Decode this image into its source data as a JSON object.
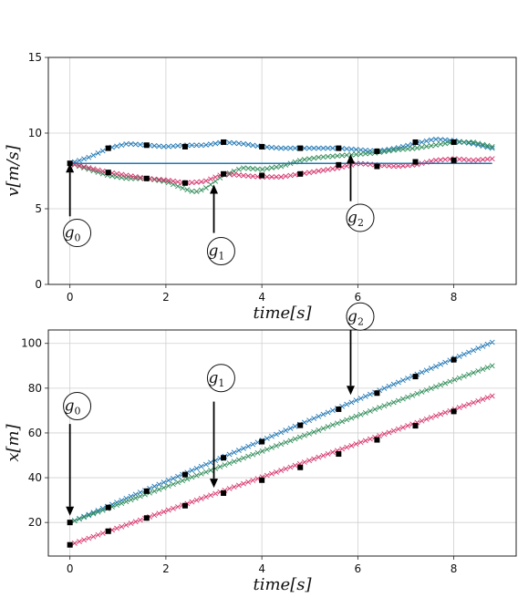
{
  "chart_data": [
    {
      "type": "line",
      "xlabel": "time[s]",
      "ylabel": "v[m/s]",
      "xlim": [
        -0.45,
        9.3
      ],
      "ylim": [
        0,
        15
      ],
      "xticks": [
        0,
        2,
        4,
        6,
        8
      ],
      "yticks": [
        0,
        5,
        10,
        15
      ],
      "grid": true,
      "series": [
        {
          "color": "#1f77b4",
          "marker": "x",
          "x": [
            0,
            0.4,
            0.8,
            1.2,
            1.6,
            2.0,
            2.4,
            2.8,
            3.2,
            3.6,
            4.0,
            4.4,
            4.8,
            5.2,
            5.6,
            6.0,
            6.4,
            6.8,
            7.2,
            7.6,
            8.0,
            8.4,
            8.8
          ],
          "y": [
            8.0,
            8.4,
            9.0,
            9.3,
            9.2,
            9.1,
            9.2,
            9.2,
            9.4,
            9.3,
            9.1,
            9.0,
            9.0,
            9.0,
            9.0,
            8.9,
            8.8,
            9.0,
            9.3,
            9.6,
            9.5,
            9.3,
            9.0
          ]
        },
        {
          "color": "#2e8b57",
          "marker": "x",
          "x": [
            0,
            0.4,
            0.8,
            1.2,
            1.6,
            2.0,
            2.4,
            2.6,
            2.8,
            3.2,
            3.6,
            4.0,
            4.4,
            4.8,
            5.2,
            5.6,
            6.0,
            6.4,
            6.8,
            7.2,
            7.6,
            8.0,
            8.4,
            8.8
          ],
          "y": [
            8.0,
            7.6,
            7.2,
            7.0,
            7.0,
            6.8,
            6.3,
            6.1,
            6.3,
            7.2,
            7.7,
            7.6,
            7.8,
            8.2,
            8.4,
            8.5,
            8.6,
            8.7,
            8.9,
            9.0,
            9.2,
            9.4,
            9.4,
            9.1
          ]
        },
        {
          "color": "#d6336c",
          "marker": "x",
          "x": [
            0,
            0.4,
            0.8,
            1.2,
            1.6,
            2.0,
            2.4,
            2.8,
            3.2,
            3.6,
            4.0,
            4.4,
            4.8,
            5.2,
            5.6,
            6.0,
            6.4,
            6.8,
            7.2,
            7.6,
            8.0,
            8.4,
            8.8
          ],
          "y": [
            8.0,
            7.7,
            7.4,
            7.2,
            7.0,
            6.9,
            6.7,
            6.8,
            7.3,
            7.2,
            7.1,
            7.1,
            7.3,
            7.5,
            7.7,
            8.0,
            7.9,
            7.8,
            7.9,
            8.2,
            8.3,
            8.2,
            8.3
          ]
        },
        {
          "color": "#1f77b4",
          "marker": "none",
          "x": [
            0,
            8.8
          ],
          "y": [
            8.0,
            8.0
          ]
        }
      ],
      "points": [
        {
          "x": 0.8,
          "y": 9.0
        },
        {
          "x": 1.6,
          "y": 9.2
        },
        {
          "x": 2.4,
          "y": 9.1
        },
        {
          "x": 3.2,
          "y": 9.4
        },
        {
          "x": 4.0,
          "y": 9.1
        },
        {
          "x": 4.8,
          "y": 9.0
        },
        {
          "x": 5.6,
          "y": 9.0
        },
        {
          "x": 6.4,
          "y": 8.8
        },
        {
          "x": 7.2,
          "y": 9.4
        },
        {
          "x": 8.0,
          "y": 9.4
        },
        {
          "x": 0,
          "y": 8.0
        },
        {
          "x": 0.8,
          "y": 7.4
        },
        {
          "x": 1.6,
          "y": 7.0
        },
        {
          "x": 2.4,
          "y": 6.7
        },
        {
          "x": 3.2,
          "y": 7.3
        },
        {
          "x": 4.0,
          "y": 7.2
        },
        {
          "x": 4.8,
          "y": 7.3
        },
        {
          "x": 5.6,
          "y": 7.9
        },
        {
          "x": 6.4,
          "y": 7.8
        },
        {
          "x": 7.2,
          "y": 8.1
        },
        {
          "x": 8.0,
          "y": 8.2
        }
      ],
      "annotations": [
        {
          "base": "g",
          "sub": "0",
          "text_x": 0.15,
          "text_y": 3.4,
          "arrow_x": 0.0,
          "arrow_from": 4.5,
          "arrow_to": 8.0
        },
        {
          "base": "g",
          "sub": "1",
          "text_x": 3.15,
          "text_y": 2.2,
          "arrow_x": 3.0,
          "arrow_from": 3.4,
          "arrow_to": 6.6
        },
        {
          "base": "g",
          "sub": "2",
          "text_x": 6.05,
          "text_y": 4.4,
          "arrow_x": 5.85,
          "arrow_from": 5.5,
          "arrow_to": 8.6
        }
      ]
    },
    {
      "type": "line",
      "xlabel": "time[s]",
      "ylabel": "x[m]",
      "xlim": [
        -0.45,
        9.3
      ],
      "ylim": [
        5,
        106
      ],
      "xticks": [
        0,
        2,
        4,
        6,
        8
      ],
      "yticks": [
        20,
        40,
        60,
        80,
        100
      ],
      "grid": true,
      "series": [
        {
          "color": "#1f77b4",
          "marker": "x",
          "x": [
            0,
            8.8
          ],
          "y": [
            20.0,
            100.5
          ]
        },
        {
          "color": "#2e8b57",
          "marker": "x",
          "x": [
            0,
            8.8
          ],
          "y": [
            20.0,
            90.0
          ]
        },
        {
          "color": "#d6336c",
          "marker": "x",
          "x": [
            0,
            8.8
          ],
          "y": [
            10.0,
            76.5
          ]
        }
      ],
      "points": [
        {
          "x": 0,
          "y": 20.0
        },
        {
          "x": 0.8,
          "y": 26.7
        },
        {
          "x": 1.6,
          "y": 34.0
        },
        {
          "x": 2.4,
          "y": 41.4
        },
        {
          "x": 3.2,
          "y": 48.9
        },
        {
          "x": 4.0,
          "y": 56.1
        },
        {
          "x": 4.8,
          "y": 63.4
        },
        {
          "x": 5.6,
          "y": 70.6
        },
        {
          "x": 6.4,
          "y": 77.8
        },
        {
          "x": 7.2,
          "y": 85.2
        },
        {
          "x": 8.0,
          "y": 92.7
        },
        {
          "x": 0,
          "y": 10.0
        },
        {
          "x": 0.8,
          "y": 16.1
        },
        {
          "x": 1.6,
          "y": 22.0
        },
        {
          "x": 2.4,
          "y": 27.5
        },
        {
          "x": 3.2,
          "y": 33.1
        },
        {
          "x": 4.0,
          "y": 38.9
        },
        {
          "x": 4.8,
          "y": 44.6
        },
        {
          "x": 5.6,
          "y": 50.6
        },
        {
          "x": 6.4,
          "y": 56.9
        },
        {
          "x": 7.2,
          "y": 63.2
        },
        {
          "x": 8.0,
          "y": 69.6
        }
      ],
      "annotations": [
        {
          "base": "g",
          "sub": "0",
          "text_x": 0.15,
          "text_y": 72.0,
          "arrow_x": 0.0,
          "arrow_from": 64.0,
          "arrow_to": 23.0
        },
        {
          "base": "g",
          "sub": "1",
          "text_x": 3.15,
          "text_y": 84.5,
          "arrow_x": 3.0,
          "arrow_from": 74.0,
          "arrow_to": 35.5
        },
        {
          "base": "g",
          "sub": "2",
          "text_x": 6.05,
          "text_y": 112.0,
          "arrow_x": 5.85,
          "arrow_from": 106.0,
          "arrow_to": 77.0
        }
      ]
    }
  ]
}
